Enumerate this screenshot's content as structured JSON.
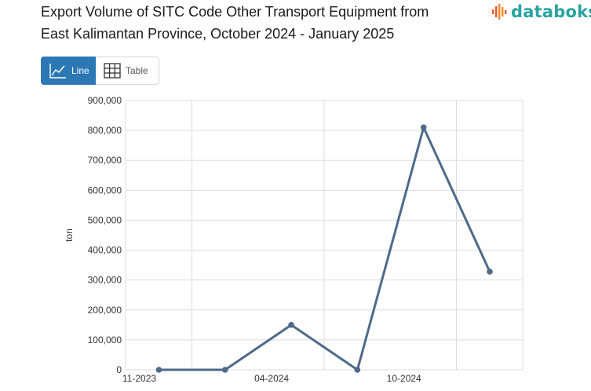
{
  "header": {
    "title_line1": "Export Volume of SITC Code Other Transport Equipment from",
    "title_line2": "East Kalimantan Province, October 2024 - January 2025",
    "logo_text": "databoks",
    "logo_icon": "bar-pulse-icon"
  },
  "tabs": [
    {
      "label": "Line",
      "icon": "line-chart-icon",
      "active": true
    },
    {
      "label": "Table",
      "icon": "grid-table-icon",
      "active": false
    }
  ],
  "colors": {
    "accent": "#2b78b5",
    "line": "#4d6a8a",
    "logo": "#2aa3a0",
    "logo_mark": "#e4572e"
  },
  "chart_data": {
    "type": "line",
    "ylabel": "ton",
    "xlabel": "",
    "ylim": [
      0,
      900000
    ],
    "yticks": [
      0,
      100000,
      200000,
      300000,
      400000,
      500000,
      600000,
      700000,
      800000,
      900000
    ],
    "ytick_labels": [
      "0",
      "100,000",
      "200,000",
      "300,000",
      "400,000",
      "500,000",
      "600,000",
      "700,000",
      "800,000",
      "900,000"
    ],
    "xtick_labels": [
      "11-2023",
      "04-2024",
      "10-2024"
    ],
    "grid": true,
    "series": [
      {
        "values": [
          0,
          0,
          150000,
          0,
          810000,
          328000
        ]
      }
    ]
  }
}
